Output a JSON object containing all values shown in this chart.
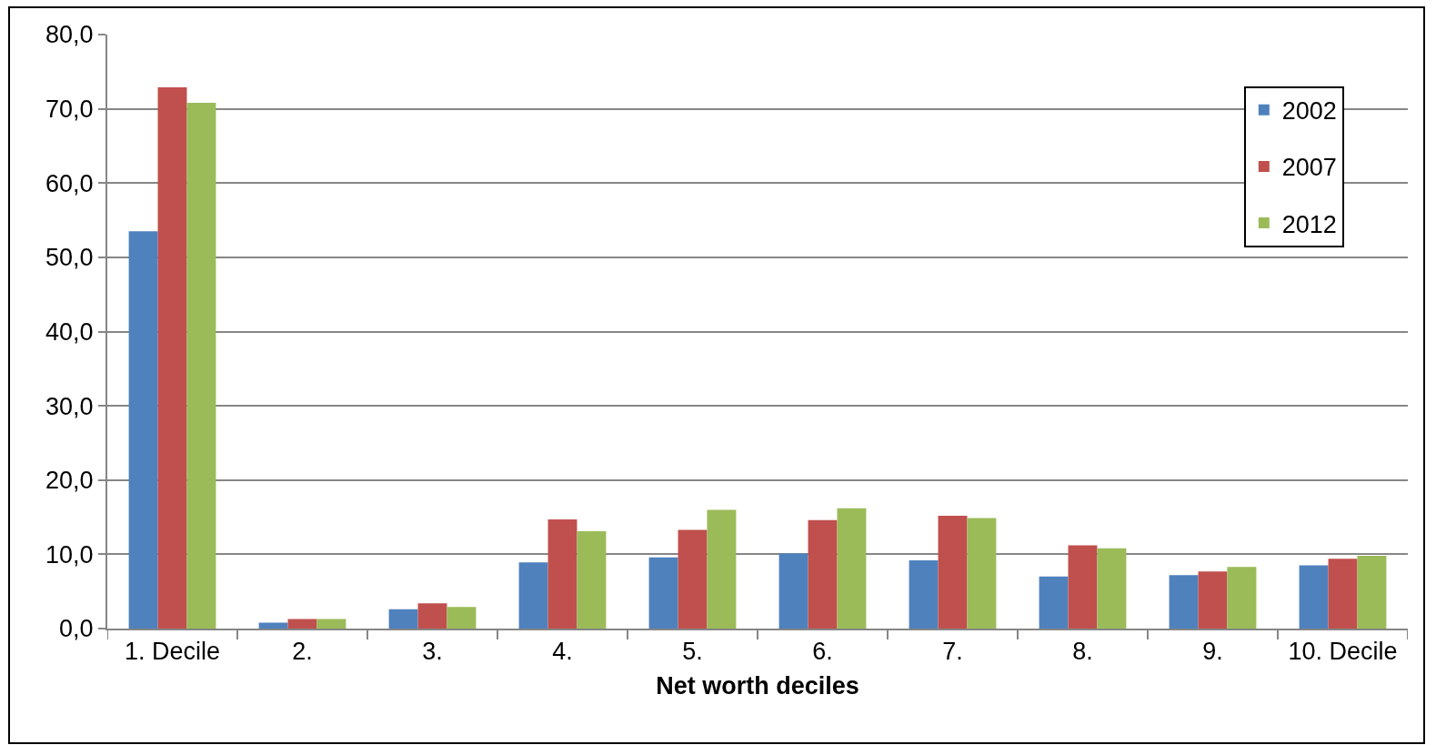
{
  "chart_data": {
    "type": "bar",
    "xlabel": "Net worth deciles",
    "categories": [
      "1. Decile",
      "2.",
      "3.",
      "4.",
      "5.",
      "6.",
      "7.",
      "8.",
      "9.",
      "10. Decile"
    ],
    "series": [
      {
        "name": "2002",
        "color": "#4f81bd",
        "values": [
          53.5,
          0.8,
          2.6,
          8.9,
          9.6,
          10.1,
          9.2,
          7.0,
          7.2,
          8.5
        ]
      },
      {
        "name": "2007",
        "color": "#c0504d",
        "values": [
          72.9,
          1.3,
          3.4,
          14.7,
          13.3,
          14.6,
          15.2,
          11.2,
          7.7,
          9.4
        ]
      },
      {
        "name": "2012",
        "color": "#9bbb59",
        "values": [
          70.8,
          1.3,
          2.9,
          13.1,
          16.0,
          16.2,
          14.9,
          10.8,
          8.3,
          9.8
        ]
      }
    ],
    "ylim": [
      0,
      80
    ],
    "yticks": [
      {
        "value": 0,
        "label": "0,0"
      },
      {
        "value": 10,
        "label": "10,0"
      },
      {
        "value": 20,
        "label": "20,0"
      },
      {
        "value": 30,
        "label": "30,0"
      },
      {
        "value": 40,
        "label": "40,0"
      },
      {
        "value": 50,
        "label": "50,0"
      },
      {
        "value": 60,
        "label": "60,0"
      },
      {
        "value": 70,
        "label": "70,0"
      },
      {
        "value": 80,
        "label": "80,0"
      }
    ],
    "grid": "y",
    "legend": "top right"
  }
}
